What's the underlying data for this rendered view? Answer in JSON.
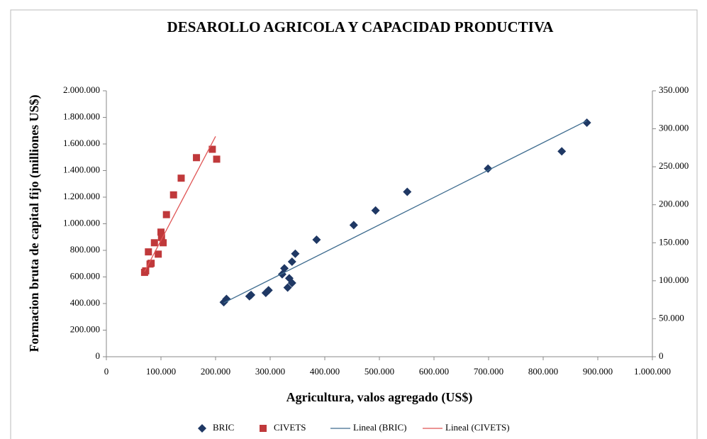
{
  "chart_data": {
    "type": "scatter",
    "title": "DESAROLLO AGRICOLA Y CAPACIDAD PRODUCTIVA",
    "xlabel": "Agricultura, valos agregado (US$)",
    "ylabel": "Formacion bruta de capital fijo (milliones US$)",
    "xlim": [
      0,
      1000000
    ],
    "ylim": [
      0,
      2000000
    ],
    "y2lim": [
      0,
      350000
    ],
    "xticks": [
      0,
      {
        "value": 100000,
        "label": "100.000"
      },
      {
        "value": 200000,
        "label": "200.000"
      },
      {
        "value": 300000,
        "label": "300.000"
      },
      {
        "value": 400000,
        "label": "400.000"
      },
      {
        "value": 500000,
        "label": "500.000"
      },
      {
        "value": 600000,
        "label": "600.000"
      },
      {
        "value": 700000,
        "label": "700.000"
      },
      {
        "value": 800000,
        "label": "800.000"
      },
      {
        "value": 900000,
        "label": "900.000"
      },
      {
        "value": 1000000,
        "label": "1.000.000"
      }
    ],
    "yticks": [
      0,
      {
        "value": 200000,
        "label": "200.000"
      },
      {
        "value": 400000,
        "label": "400.000"
      },
      {
        "value": 600000,
        "label": "600.000"
      },
      {
        "value": 800000,
        "label": "800.000"
      },
      {
        "value": 1000000,
        "label": "1.000.000"
      },
      {
        "value": 1200000,
        "label": "1.200.000"
      },
      {
        "value": 1400000,
        "label": "1.400.000"
      },
      {
        "value": 1600000,
        "label": "1.600.000"
      },
      {
        "value": 1800000,
        "label": "1.800.000"
      },
      {
        "value": 2000000,
        "label": "2.000.000"
      }
    ],
    "y2ticks": [
      0,
      {
        "value": 50000,
        "label": "50.000"
      },
      {
        "value": 100000,
        "label": "100.000"
      },
      {
        "value": 150000,
        "label": "150.000"
      },
      {
        "value": 200000,
        "label": "200.000"
      },
      {
        "value": 250000,
        "label": "250.000"
      },
      {
        "value": 300000,
        "label": "300.000"
      },
      {
        "value": 350000,
        "label": "350.000"
      }
    ],
    "legend": "bottom",
    "series": [
      {
        "name": "BRIC",
        "color": "#1f3864",
        "marker": "diamond",
        "x": [
          215000,
          220000,
          262000,
          265000,
          292000,
          297000,
          322000,
          326000,
          332000,
          335000,
          340000,
          340000,
          346000,
          385000,
          453000,
          493000,
          551000,
          699000,
          834000,
          880000
        ],
        "values": [
          410000,
          435000,
          455000,
          465000,
          480000,
          500000,
          620000,
          665000,
          520000,
          590000,
          555000,
          715000,
          775000,
          880000,
          990000,
          1100000,
          1240000,
          1415000,
          1545000,
          1760000
        ]
      },
      {
        "name": "CIVETS",
        "color": "#c0393b",
        "marker": "square",
        "axis": "y2",
        "x": [
          70000,
          72000,
          77000,
          80000,
          82000,
          88000,
          95000,
          100000,
          101000,
          104000,
          110000,
          123000,
          137000,
          165000,
          194000,
          202000
        ],
        "values": [
          111000,
          113000,
          138000,
          122000,
          123000,
          150000,
          135000,
          164000,
          157000,
          150000,
          187000,
          213000,
          235000,
          262000,
          273000,
          260000
        ]
      },
      {
        "name": "Lineal (BRIC)",
        "color": "#3d6b8e",
        "marker": "line",
        "x": [
          215000,
          880000
        ],
        "values": [
          405000,
          1775000
        ]
      },
      {
        "name": "Lineal (CIVETS)",
        "color": "#e05555",
        "marker": "line",
        "axis": "y2",
        "x": [
          70000,
          200000
        ],
        "values": [
          112000,
          290000
        ]
      }
    ]
  }
}
